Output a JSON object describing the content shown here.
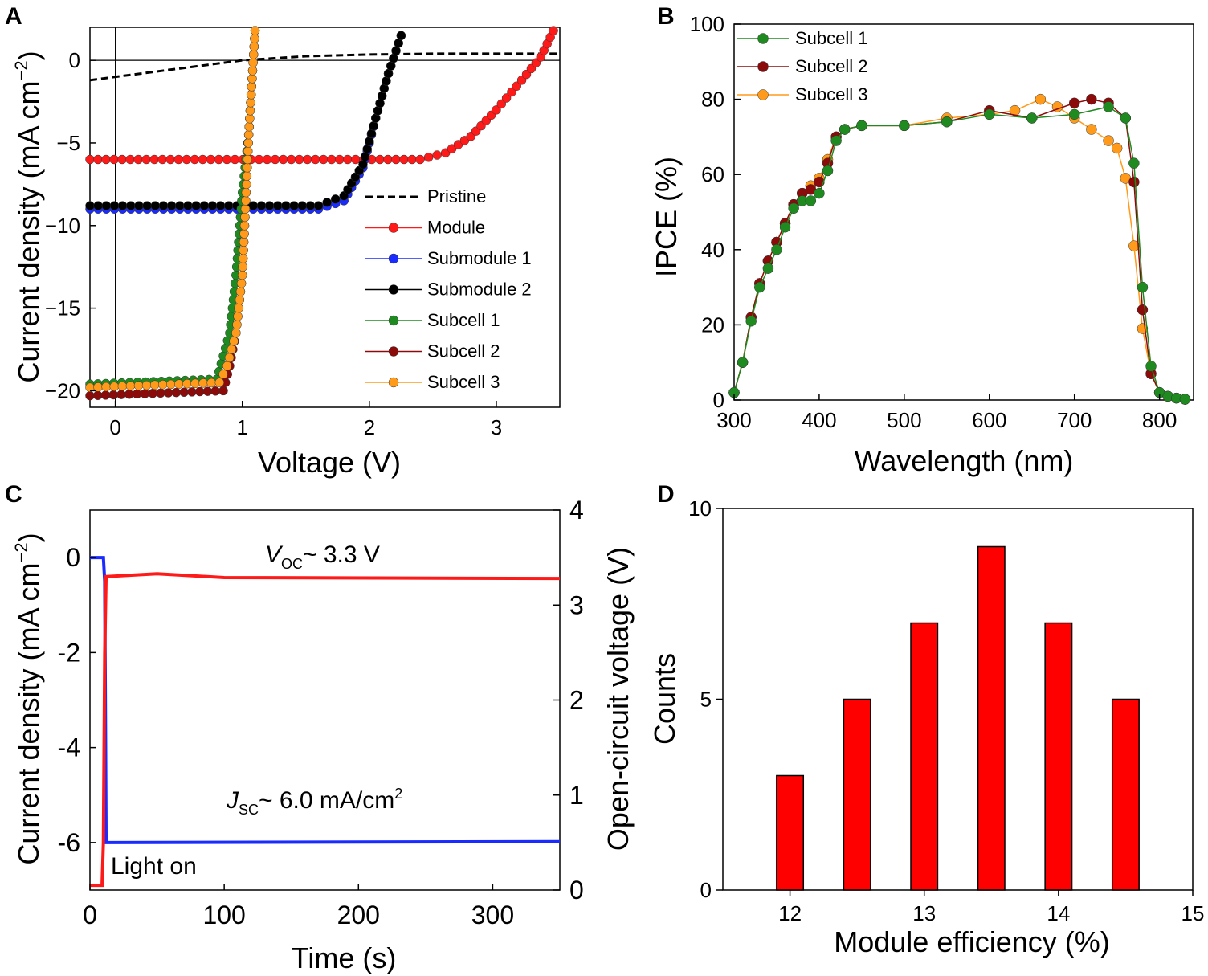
{
  "colors": {
    "red": "#ff1a1a",
    "blue": "#1a2bff",
    "black": "#000000",
    "green": "#1f8a1f",
    "darkred": "#8b0b0b",
    "orange": "#ff9a1a",
    "bar": "#ff0000"
  },
  "chart_data": [
    {
      "panel": "A",
      "type": "line",
      "xlabel": "Voltage (V)",
      "ylabel": "Current density (mA cm⁻²)",
      "xlim": [
        -0.2,
        3.5
      ],
      "ylim": [
        -21,
        2
      ],
      "xticks": [
        0,
        1,
        2,
        3
      ],
      "yticks": [
        0,
        -5,
        -10,
        -15,
        -20
      ],
      "ytick_labels": [
        "0",
        "−5",
        "−10",
        "−15",
        "−20"
      ],
      "series": [
        {
          "name": "Pristine",
          "color_key": "black",
          "dashed": true,
          "markers": false,
          "x": [
            -0.2,
            0.2,
            0.6,
            1.0,
            1.5,
            2.0,
            2.5,
            3.0,
            3.5
          ],
          "y": [
            -1.2,
            -0.8,
            -0.4,
            0.0,
            0.25,
            0.35,
            0.4,
            0.4,
            0.4
          ]
        },
        {
          "name": "Module",
          "color_key": "red",
          "markers": true,
          "x": [
            -0.2,
            2.4,
            2.6,
            2.8,
            3.0,
            3.2,
            3.35,
            3.45
          ],
          "y": [
            -6.0,
            -6.0,
            -5.6,
            -4.6,
            -3.0,
            -1.2,
            0.2,
            1.8
          ]
        },
        {
          "name": "Submodule 1",
          "color_key": "blue",
          "markers": true,
          "x": [
            -0.2,
            1.6,
            1.8,
            1.95,
            2.05,
            2.15,
            2.25
          ],
          "y": [
            -9.0,
            -9.0,
            -8.5,
            -6.5,
            -3.5,
            -0.8,
            1.5
          ]
        },
        {
          "name": "Submodule 2",
          "color_key": "black",
          "markers": true,
          "x": [
            -0.2,
            1.6,
            1.8,
            1.95,
            2.05,
            2.15,
            2.25
          ],
          "y": [
            -8.8,
            -8.8,
            -8.2,
            -6.3,
            -3.5,
            -0.8,
            1.5
          ]
        },
        {
          "name": "Subcell 1",
          "color_key": "green",
          "markers": true,
          "x": [
            -0.2,
            0.8,
            0.9,
            0.95,
            1.0,
            1.05,
            1.1
          ],
          "y": [
            -19.6,
            -19.3,
            -16.5,
            -13.0,
            -8.0,
            -4.5,
            1.8
          ]
        },
        {
          "name": "Subcell 2",
          "color_key": "darkred",
          "markers": true,
          "x": [
            -0.2,
            0.85,
            0.9,
            0.95,
            1.0,
            1.05,
            1.1
          ],
          "y": [
            -20.3,
            -20.0,
            -18.5,
            -16.5,
            -13.0,
            -4.5,
            1.8
          ]
        },
        {
          "name": "Subcell 3",
          "color_key": "orange",
          "markers": true,
          "x": [
            -0.2,
            0.82,
            0.88,
            0.95,
            1.0,
            1.05,
            1.1
          ],
          "y": [
            -19.8,
            -19.5,
            -18.5,
            -16.5,
            -13.0,
            -4.5,
            1.8
          ]
        }
      ]
    },
    {
      "panel": "B",
      "type": "line",
      "xlabel": "Wavelength (nm)",
      "ylabel": "IPCE (%)",
      "xlim": [
        300,
        840
      ],
      "ylim": [
        0,
        100
      ],
      "xticks": [
        300,
        400,
        500,
        600,
        700,
        800
      ],
      "yticks": [
        0,
        20,
        40,
        60,
        80,
        100
      ],
      "series": [
        {
          "name": "Subcell 1",
          "color_key": "green",
          "x": [
            300,
            310,
            320,
            330,
            340,
            350,
            360,
            370,
            380,
            390,
            400,
            410,
            420,
            430,
            450,
            500,
            550,
            600,
            650,
            700,
            740,
            760,
            770,
            780,
            790,
            800,
            810,
            820,
            830
          ],
          "y": [
            2,
            10,
            21,
            30,
            35,
            40,
            46,
            51,
            53,
            53,
            55,
            61,
            69,
            72,
            73,
            73,
            74,
            76,
            75,
            76,
            78,
            75,
            63,
            30,
            9,
            2,
            1,
            0.5,
            0.2
          ]
        },
        {
          "name": "Subcell 2",
          "color_key": "darkred",
          "x": [
            300,
            310,
            320,
            330,
            340,
            350,
            360,
            370,
            380,
            390,
            400,
            410,
            420,
            430,
            450,
            500,
            550,
            600,
            650,
            700,
            720,
            740,
            760,
            770,
            780,
            790,
            800,
            810,
            820,
            830
          ],
          "y": [
            2,
            10,
            22,
            31,
            37,
            42,
            47,
            52,
            55,
            56,
            58,
            63,
            70,
            72,
            73,
            73,
            74,
            77,
            75,
            79,
            80,
            79,
            75,
            58,
            24,
            7,
            2,
            1,
            0.5,
            0.2
          ]
        },
        {
          "name": "Subcell 3",
          "color_key": "orange",
          "x": [
            300,
            310,
            320,
            330,
            340,
            350,
            360,
            370,
            380,
            390,
            400,
            410,
            420,
            430,
            450,
            500,
            550,
            600,
            630,
            660,
            680,
            700,
            720,
            740,
            750,
            760,
            770,
            780,
            790,
            800,
            810,
            820,
            830
          ],
          "y": [
            2,
            10,
            22,
            31,
            37,
            42,
            47,
            52,
            55,
            57,
            59,
            64,
            70,
            72,
            73,
            73,
            75,
            76,
            77,
            80,
            78,
            75,
            72,
            69,
            67,
            59,
            41,
            19,
            7,
            2,
            1,
            0.5,
            0.2
          ]
        }
      ]
    },
    {
      "panel": "C",
      "type": "line",
      "xlabel": "Time (s)",
      "ylabel": "Current density (mA cm⁻²)",
      "y2label": "Open-circuit voltage (V)",
      "xlim": [
        0,
        350
      ],
      "ylim": [
        -7,
        1
      ],
      "y2lim": [
        0,
        4
      ],
      "xticks": [
        0,
        100,
        200,
        300
      ],
      "yticks": [
        0,
        -2,
        -4,
        -6
      ],
      "y2ticks": [
        0,
        1,
        2,
        3,
        4
      ],
      "series": [
        {
          "name": "Current density",
          "color_key": "blue",
          "axis": "left",
          "x": [
            0,
            10,
            11,
            12,
            13,
            350
          ],
          "y": [
            0,
            0,
            -0.5,
            -6.0,
            -6.0,
            -5.98
          ]
        },
        {
          "name": "Open-circuit voltage",
          "color_key": "red",
          "axis": "right",
          "x": [
            0,
            9,
            10,
            11,
            12,
            50,
            100,
            350
          ],
          "y": [
            0.05,
            0.05,
            0.5,
            2.5,
            3.3,
            3.33,
            3.29,
            3.28
          ]
        }
      ],
      "annotations": {
        "voc_label": "~ 3.3 V",
        "jsc_label": "~ 6.0 mA/cm",
        "light_on": "Light on"
      }
    },
    {
      "panel": "D",
      "type": "bar",
      "xlabel": "Module efficiency (%)",
      "ylabel": "Counts",
      "xlim": [
        11.5,
        15
      ],
      "ylim": [
        0,
        10
      ],
      "xticks": [
        12,
        13,
        14,
        15
      ],
      "yticks": [
        0,
        5,
        10
      ],
      "bin_width": 0.4,
      "categories": [
        12,
        12.5,
        13,
        13.5,
        14,
        14.5
      ],
      "values": [
        3,
        5,
        7,
        9,
        7,
        5
      ]
    }
  ]
}
